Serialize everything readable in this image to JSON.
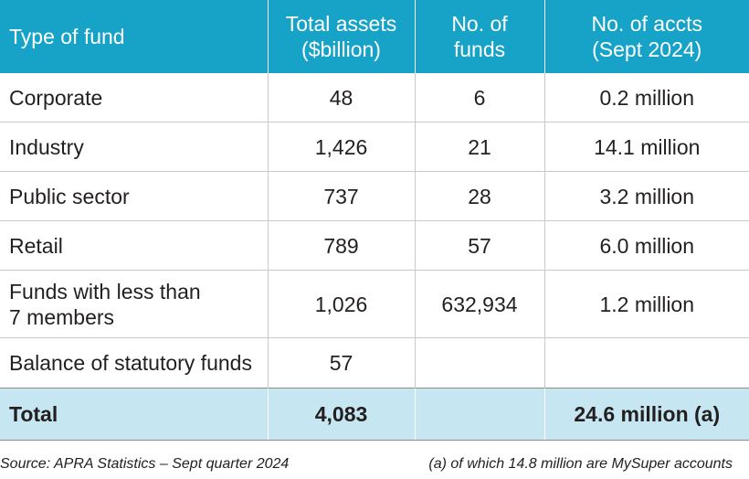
{
  "table": {
    "headers": {
      "type": "Type of fund",
      "assets": [
        "Total assets",
        "($billion)"
      ],
      "funds": [
        "No. of",
        "funds"
      ],
      "accounts": [
        "No. of accts",
        "(Sept 2024)"
      ]
    },
    "rows": [
      {
        "type": [
          "Corporate"
        ],
        "assets": "48",
        "funds": "6",
        "accounts": "0.2 million"
      },
      {
        "type": [
          "Industry"
        ],
        "assets": "1,426",
        "funds": "21",
        "accounts": "14.1 million"
      },
      {
        "type": [
          "Public sector"
        ],
        "assets": "737",
        "funds": "28",
        "accounts": "3.2 million"
      },
      {
        "type": [
          "Retail"
        ],
        "assets": "789",
        "funds": "57",
        "accounts": "6.0 million"
      },
      {
        "type": [
          "Funds with less than",
          "7 members"
        ],
        "assets": "1,026",
        "funds": "632,934",
        "accounts": "1.2 million"
      },
      {
        "type": [
          "Balance of statutory funds"
        ],
        "assets": "57",
        "funds": "",
        "accounts": ""
      }
    ],
    "total": {
      "label": "Total",
      "assets": "4,083",
      "funds": "",
      "accounts": "24.6 million (a)"
    }
  },
  "footer": {
    "source": "Source: APRA Statistics – Sept quarter 2024",
    "note": "(a) of which 14.8 million are MySuper accounts"
  },
  "colors": {
    "header_bg": "#16a3c7",
    "total_bg": "#c6e6f1",
    "rule": "#c9c9c9"
  }
}
